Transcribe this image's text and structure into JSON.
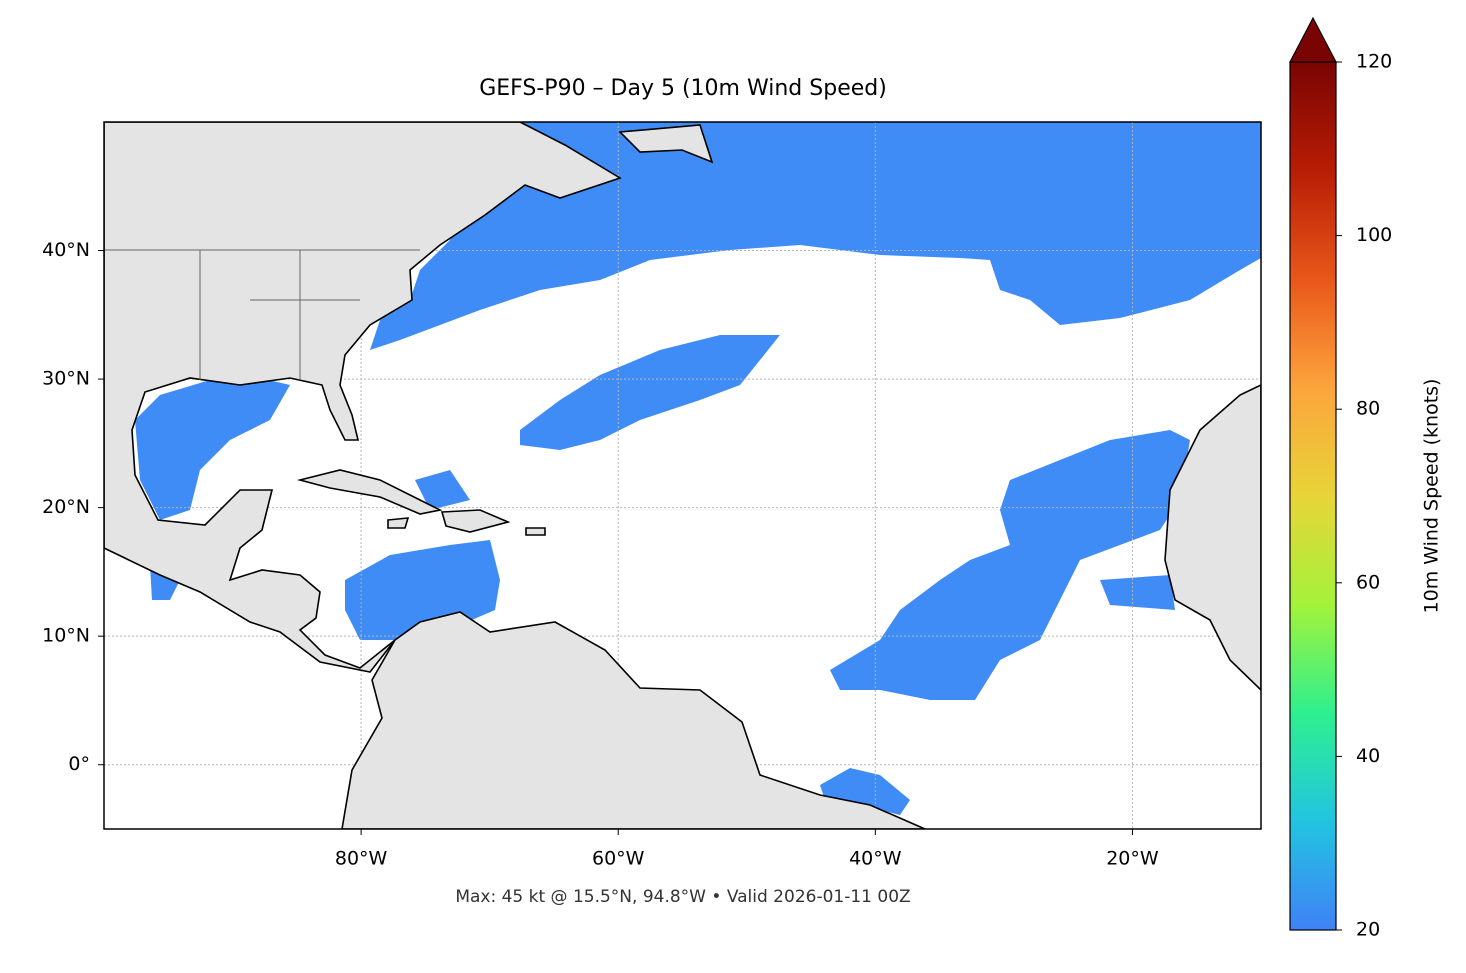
{
  "chart_data": {
    "type": "map",
    "title": "GEFS-P90 – Day 5 (10m Wind Speed)",
    "xlim": [
      -100,
      -10
    ],
    "ylim": [
      -5,
      50
    ],
    "xticks": [
      {
        "value": -80,
        "label": "80°W"
      },
      {
        "value": -60,
        "label": "60°W"
      },
      {
        "value": -40,
        "label": "40°W"
      },
      {
        "value": -20,
        "label": "20°W"
      }
    ],
    "yticks": [
      {
        "value": 0,
        "label": "0°"
      },
      {
        "value": 10,
        "label": "10°N"
      },
      {
        "value": 20,
        "label": "20°N"
      },
      {
        "value": 30,
        "label": "30°N"
      },
      {
        "value": 40,
        "label": "40°N"
      }
    ],
    "grid": true,
    "colorbar": {
      "label": "10m Wind Speed (knots)",
      "lim": [
        20,
        120
      ],
      "ticks": [
        20,
        40,
        60,
        80,
        100,
        120
      ],
      "colors": [
        "#3f82f7",
        "#22c4e0",
        "#2ef08f",
        "#a4f23a",
        "#e8d438",
        "#fca43c",
        "#e9571a",
        "#b71d05",
        "#7a0403"
      ]
    },
    "caption": "Max: 45 kt @ 15.5°N, 94.8°W • Valid 2026-01-11 00Z"
  }
}
